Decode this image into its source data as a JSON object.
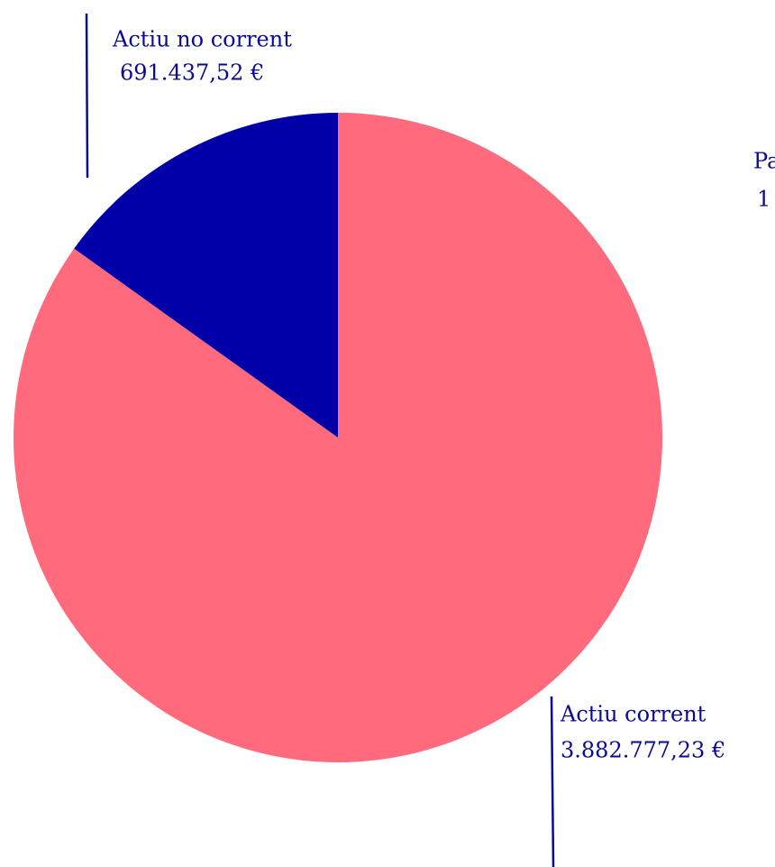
{
  "chart_data": {
    "type": "pie",
    "categories": [
      "Actiu no corrent",
      "Actiu corrent"
    ],
    "values": [
      691437.52,
      3882777.23
    ],
    "value_labels": [
      "691.437,52 €",
      "3.882.777,23 €"
    ],
    "colors": [
      "#0000a8",
      "#ff6b7d"
    ],
    "annotations": [
      "Pa",
      "1"
    ]
  }
}
